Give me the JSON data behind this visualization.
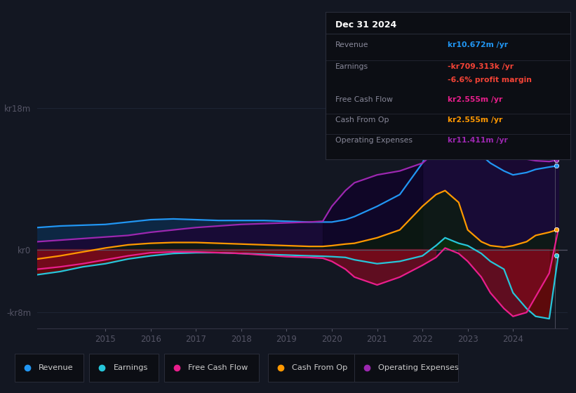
{
  "background_color": "#131722",
  "plot_bg_color": "#131722",
  "grid_color": "#1e2535",
  "zero_line_color": "#555566",
  "title_box": {
    "date": "Dec 31 2024",
    "rows": [
      {
        "label": "Revenue",
        "value": "kr10.672m /yr",
        "color": "#2196f3"
      },
      {
        "label": "Earnings",
        "value": "-kr709.313k /yr",
        "color": "#f44336"
      },
      {
        "label": "",
        "value": "-6.6% profit margin",
        "color": "#f44336"
      },
      {
        "label": "Free Cash Flow",
        "value": "kr2.555m /yr",
        "color": "#e91e8c"
      },
      {
        "label": "Cash From Op",
        "value": "kr2.555m /yr",
        "color": "#ff9800"
      },
      {
        "label": "Operating Expenses",
        "value": "kr11.411m /yr",
        "color": "#9c27b0"
      }
    ]
  },
  "ylim": [
    -10,
    20
  ],
  "xlim": [
    2013.5,
    2025.2
  ],
  "ytick_labels": [
    "kr18m",
    "kr0",
    "-kr8m"
  ],
  "ytick_vals": [
    18,
    0,
    -8
  ],
  "xtick_vals": [
    2015,
    2016,
    2017,
    2018,
    2019,
    2020,
    2021,
    2022,
    2023,
    2024
  ],
  "legend": [
    {
      "label": "Revenue",
      "color": "#2196f3"
    },
    {
      "label": "Earnings",
      "color": "#26c6da"
    },
    {
      "label": "Free Cash Flow",
      "color": "#e91e8c"
    },
    {
      "label": "Cash From Op",
      "color": "#ff9800"
    },
    {
      "label": "Operating Expenses",
      "color": "#9c27b0"
    }
  ],
  "colors": {
    "revenue": "#2196f3",
    "earnings": "#26c6da",
    "fcf": "#e91e8c",
    "cashfromop": "#ff9800",
    "opex": "#9c27b0"
  },
  "fill_colors": {
    "revenue_pos": "#0d2a4a",
    "earnings_neg": "#7b0a0a",
    "fcf_neg": "#8b1030",
    "cashfromop_pos": "#1a2a10",
    "cashfromop_neg": "#4a1505",
    "opex_pos": "#1a0a3a"
  },
  "t": [
    2013.5,
    2014.0,
    2014.5,
    2015.0,
    2015.5,
    2016.0,
    2016.5,
    2017.0,
    2017.5,
    2018.0,
    2018.5,
    2019.0,
    2019.5,
    2019.8,
    2020.0,
    2020.3,
    2020.5,
    2021.0,
    2021.5,
    2022.0,
    2022.3,
    2022.5,
    2022.8,
    2023.0,
    2023.3,
    2023.5,
    2023.8,
    2024.0,
    2024.3,
    2024.5,
    2024.8,
    2025.0
  ],
  "revenue": [
    2.8,
    3.0,
    3.1,
    3.2,
    3.5,
    3.8,
    3.9,
    3.8,
    3.7,
    3.7,
    3.7,
    3.6,
    3.5,
    3.5,
    3.5,
    3.8,
    4.2,
    5.5,
    7.0,
    11.0,
    15.0,
    17.5,
    17.0,
    14.0,
    12.0,
    11.0,
    10.0,
    9.5,
    9.8,
    10.2,
    10.5,
    10.672
  ],
  "earnings": [
    -3.2,
    -2.8,
    -2.2,
    -1.8,
    -1.2,
    -0.8,
    -0.5,
    -0.4,
    -0.4,
    -0.5,
    -0.6,
    -0.7,
    -0.8,
    -0.85,
    -0.9,
    -1.0,
    -1.3,
    -1.8,
    -1.5,
    -0.8,
    0.5,
    1.5,
    0.8,
    0.5,
    -0.5,
    -1.5,
    -2.5,
    -5.5,
    -7.5,
    -8.5,
    -8.8,
    -0.709
  ],
  "fcf": [
    -2.5,
    -2.2,
    -1.8,
    -1.3,
    -0.8,
    -0.4,
    -0.3,
    -0.3,
    -0.4,
    -0.5,
    -0.7,
    -0.9,
    -1.0,
    -1.1,
    -1.5,
    -2.5,
    -3.5,
    -4.5,
    -3.5,
    -2.0,
    -1.0,
    0.2,
    -0.5,
    -1.5,
    -3.5,
    -5.5,
    -7.5,
    -8.5,
    -8.0,
    -6.0,
    -3.0,
    2.555
  ],
  "cashfromop": [
    -1.2,
    -0.8,
    -0.3,
    0.2,
    0.6,
    0.8,
    0.9,
    0.9,
    0.8,
    0.7,
    0.6,
    0.5,
    0.4,
    0.4,
    0.5,
    0.7,
    0.8,
    1.5,
    2.5,
    5.5,
    7.0,
    7.5,
    6.0,
    2.5,
    1.0,
    0.5,
    0.3,
    0.5,
    1.0,
    1.8,
    2.2,
    2.555
  ],
  "opex": [
    1.0,
    1.2,
    1.4,
    1.6,
    1.8,
    2.2,
    2.5,
    2.8,
    3.0,
    3.2,
    3.3,
    3.4,
    3.5,
    3.6,
    5.5,
    7.5,
    8.5,
    9.5,
    10.0,
    11.0,
    12.5,
    13.5,
    14.5,
    14.8,
    14.5,
    14.0,
    13.0,
    12.0,
    11.5,
    11.3,
    11.2,
    11.411
  ]
}
